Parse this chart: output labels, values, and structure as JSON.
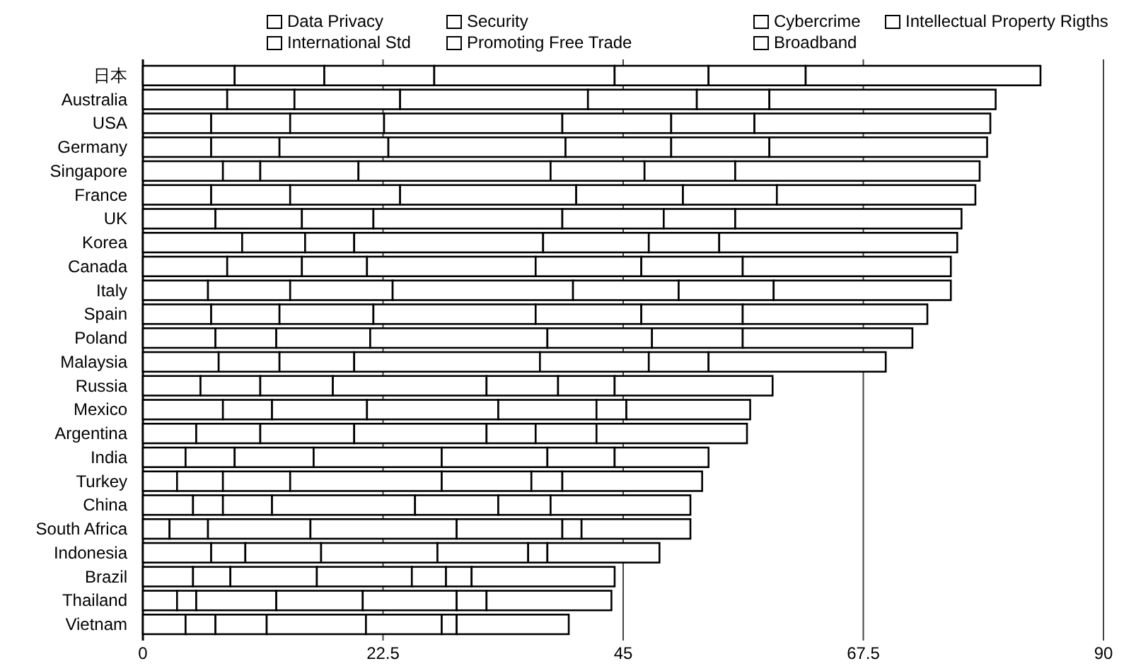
{
  "chart_data": {
    "type": "bar",
    "orientation": "horizontal",
    "stacked": true,
    "grid": "x",
    "legend": "top",
    "categories": [
      "日本",
      "Australia",
      "USA",
      "Germany",
      "Singapore",
      "France",
      "UK",
      "Korea",
      "Canada",
      "Italy",
      "Spain",
      "Poland",
      "Malaysia",
      "Russia",
      "Mexico",
      "Argentina",
      "India",
      "Turkey",
      "China",
      "South Africa",
      "Indonesia",
      "Brazil",
      "Thailand",
      "Vietnam"
    ],
    "xlim": [
      0,
      90
    ],
    "xticks": [
      0,
      22.5,
      45,
      67.5,
      90
    ],
    "series": [
      {
        "name": "Data Privacy",
        "color": "#ffffff",
        "values": [
          8.6,
          7.9,
          6.4,
          6.4,
          7.5,
          6.4,
          6.8,
          9.3,
          7.9,
          6.1,
          6.4,
          6.8,
          7.1,
          5.4,
          7.5,
          5.0,
          4.0,
          3.2,
          4.7,
          2.5,
          6.4,
          4.7,
          3.2,
          4.0
        ]
      },
      {
        "name": "International Std",
        "color": "#ffffff",
        "values": [
          8.4,
          6.3,
          7.4,
          6.4,
          3.5,
          7.4,
          8.1,
          5.9,
          7.0,
          7.7,
          6.4,
          5.7,
          5.7,
          5.6,
          4.6,
          6.0,
          4.6,
          4.3,
          2.8,
          3.6,
          3.2,
          3.5,
          1.8,
          2.8
        ]
      },
      {
        "name": "Security",
        "color": "#ffffff",
        "values": [
          10.3,
          9.9,
          8.8,
          10.2,
          9.2,
          10.3,
          6.7,
          4.6,
          6.1,
          9.6,
          8.8,
          8.8,
          7.0,
          6.8,
          8.9,
          8.8,
          7.4,
          6.3,
          4.6,
          9.6,
          7.1,
          8.1,
          7.5,
          4.8
        ]
      },
      {
        "name": "Promoting Free Trade",
        "color": "#ffffff",
        "values": [
          16.9,
          17.6,
          16.7,
          16.6,
          18.0,
          16.5,
          17.7,
          17.7,
          15.8,
          16.9,
          15.2,
          16.6,
          17.4,
          14.4,
          12.3,
          12.4,
          12.0,
          14.2,
          13.4,
          13.7,
          10.9,
          8.9,
          8.1,
          9.3
        ]
      },
      {
        "name": "Cybercrime",
        "color": "#ffffff",
        "values": [
          8.8,
          10.2,
          10.2,
          9.9,
          8.8,
          10.0,
          9.5,
          9.9,
          9.9,
          9.9,
          9.9,
          9.8,
          10.2,
          6.7,
          9.2,
          4.6,
          9.9,
          8.4,
          7.8,
          9.9,
          8.5,
          3.2,
          8.8,
          7.1
        ]
      },
      {
        "name": "Broadband",
        "color": "#ffffff",
        "values": [
          9.1,
          6.8,
          7.8,
          9.2,
          8.5,
          8.8,
          6.7,
          6.6,
          9.5,
          8.9,
          9.5,
          8.5,
          5.6,
          5.3,
          2.8,
          5.7,
          6.3,
          2.9,
          4.9,
          1.8,
          1.8,
          2.4,
          2.8,
          1.4
        ]
      },
      {
        "name": "Intellectual Property Rigths",
        "color": "#ffffff",
        "values": [
          22.0,
          21.2,
          22.1,
          20.4,
          22.9,
          18.6,
          21.2,
          22.3,
          19.5,
          16.6,
          17.3,
          15.9,
          16.6,
          14.8,
          11.6,
          14.1,
          8.8,
          13.1,
          13.1,
          10.2,
          10.5,
          13.4,
          11.7,
          10.5
        ]
      }
    ]
  }
}
